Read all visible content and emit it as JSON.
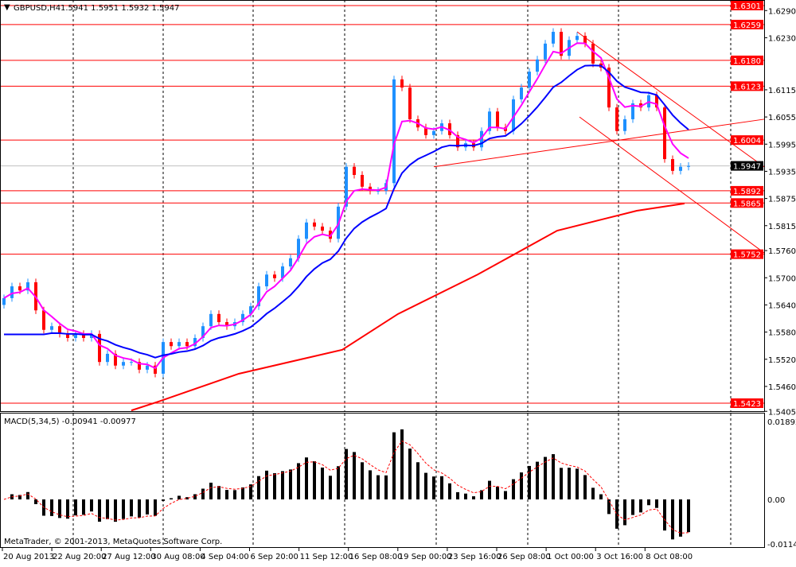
{
  "header": {
    "symbol_label": "GBPUSD,H4",
    "ohlc": "1.5941 1.5951 1.5932 1.5947"
  },
  "macd_label": "MACD(5,34,5) -0.00941 -0.00977",
  "copyright": "MetaTrader, © 2001-2013, MetaQuotes Software Corp.",
  "colors": {
    "bull": "#1e90ff",
    "bear": "#ff0000",
    "ma_fast": "#ff00ff",
    "ma_mid": "#0000ff",
    "ma_slow": "#ff0000",
    "level": "#ff0000",
    "current": "#000000"
  },
  "chart_data": [
    {
      "type": "candlestick",
      "title": "GBPUSD,H4",
      "ylim": [
        1.5405,
        1.6301
      ],
      "y_ticks": [
        "1.6290",
        "1.6230",
        "1.6115",
        "1.6055",
        "1.5995",
        "1.5935",
        "1.5875",
        "1.5815",
        "1.5760",
        "1.5700",
        "1.5640",
        "1.5580",
        "1.5520",
        "1.5460",
        "1.5405"
      ],
      "x_ticks": [
        "20 Aug 2013",
        "22 Aug 20:00",
        "27 Aug 12:00",
        "30 Aug 08:00",
        "4 Sep 04:00",
        "6 Sep 20:00",
        "11 Sep 12:00",
        "16 Sep 08:00",
        "19 Sep 00:00",
        "23 Sep 16:00",
        "26 Sep 08:00",
        "1 Oct 00:00",
        "3 Oct 16:00",
        "8 Oct 08:00"
      ],
      "closes": [
        1.5655,
        1.5681,
        1.5672,
        1.569,
        1.5628,
        1.5585,
        1.5593,
        1.5576,
        1.5567,
        1.5576,
        1.5567,
        1.5576,
        1.5514,
        1.5532,
        1.5506,
        1.5514,
        1.5514,
        1.5497,
        1.5506,
        1.5488,
        1.5558,
        1.5549,
        1.5558,
        1.5549,
        1.5567,
        1.5593,
        1.562,
        1.5602,
        1.5593,
        1.5602,
        1.562,
        1.5637,
        1.5681,
        1.5707,
        1.5699,
        1.5725,
        1.5743,
        1.5786,
        1.5822,
        1.5813,
        1.5804,
        1.5786,
        1.5857,
        1.5945,
        1.5927,
        1.5901,
        1.5892,
        1.5892,
        1.5909,
        1.6138,
        1.612,
        1.605,
        1.6032,
        1.6015,
        1.6024,
        1.6041,
        1.6015,
        1.5988,
        1.5997,
        1.5988,
        1.6024,
        1.6067,
        1.6032,
        1.6024,
        1.6094,
        1.612,
        1.6155,
        1.6182,
        1.6217,
        1.6243,
        1.619,
        1.6225,
        1.6234,
        1.6217,
        1.6173,
        1.6164,
        1.6076,
        1.6024,
        1.605,
        1.6085,
        1.6076,
        1.6103,
        1.6076,
        1.5962,
        1.5936,
        1.5945,
        1.5947
      ],
      "ma_slow": [
        [
          16,
          1.5407
        ],
        [
          19.5,
          1.5427
        ],
        [
          29.5,
          1.5488
        ],
        [
          42.5,
          1.5541
        ],
        [
          49.5,
          1.562
        ],
        [
          59.5,
          1.5707
        ],
        [
          69.5,
          1.5804
        ],
        [
          79.5,
          1.5848
        ],
        [
          85.5,
          1.5864
        ]
      ],
      "levels": [
        1.6301,
        1.6259,
        1.618,
        1.6123,
        1.6004,
        1.5892,
        1.5865,
        1.5752,
        1.5423
      ],
      "current_price": "1.5947",
      "trendlines": [
        [
          [
            54,
            1.5945
          ],
          [
            95.5,
            1.605
          ]
        ],
        [
          [
            72,
            1.6243
          ],
          [
            95.5,
            1.5945
          ]
        ],
        [
          [
            72.3,
            1.6055
          ],
          [
            95.5,
            1.5755
          ]
        ]
      ]
    },
    {
      "type": "histogram",
      "title": "MACD(5,34,5)",
      "ylim": [
        -0.01141,
        0.01892
      ],
      "y_ticks": [
        "0.01892",
        "0.00",
        "-0.01141"
      ]
    }
  ]
}
